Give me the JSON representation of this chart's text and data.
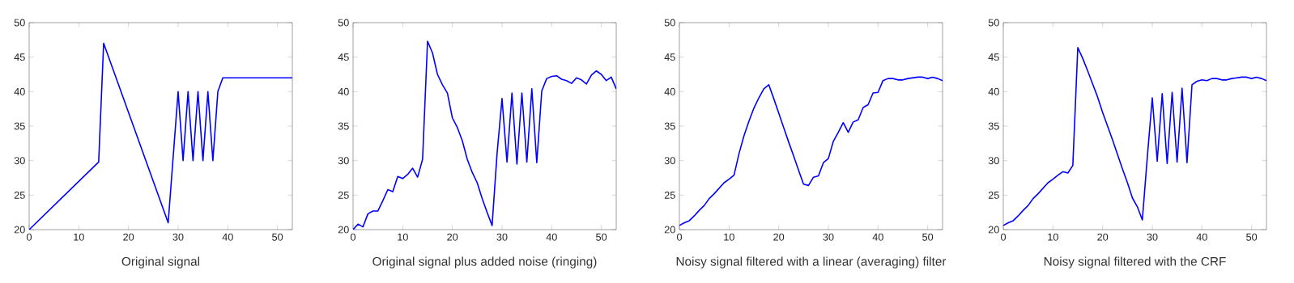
{
  "chart_data": [
    {
      "type": "line",
      "xlabel": "Original signal",
      "xlim": [
        0,
        53
      ],
      "ylim": [
        20,
        50
      ],
      "xticks": [
        0,
        10,
        20,
        30,
        40,
        50
      ],
      "yticks": [
        20,
        25,
        30,
        35,
        40,
        45,
        50
      ],
      "series": [
        {
          "color": "#0000ff",
          "x": [
            0,
            14,
            15,
            28,
            30,
            31,
            32,
            33,
            34,
            35,
            36,
            37,
            38,
            39,
            53
          ],
          "values": [
            20,
            29.8,
            47,
            21,
            40,
            30,
            40,
            30,
            40,
            30,
            40,
            30,
            40,
            42,
            42
          ]
        }
      ]
    },
    {
      "type": "line",
      "xlabel": "Original signal plus added noise (ringing)",
      "xlim": [
        0,
        53
      ],
      "ylim": [
        20,
        50
      ],
      "xticks": [
        0,
        10,
        20,
        30,
        40,
        50
      ],
      "yticks": [
        20,
        25,
        30,
        35,
        40,
        45,
        50
      ],
      "series": [
        {
          "color": "#0000ff",
          "x": [
            0,
            1,
            2,
            3,
            4,
            5,
            6,
            7,
            8,
            9,
            10,
            11,
            12,
            13,
            14,
            15,
            16,
            17,
            18,
            19,
            20,
            21,
            22,
            23,
            24,
            25,
            26,
            27,
            28,
            29,
            30,
            31,
            32,
            33,
            34,
            35,
            36,
            37,
            38,
            39,
            40,
            41,
            42,
            43,
            44,
            45,
            46,
            47,
            48,
            49,
            50,
            51,
            52,
            53
          ],
          "values": [
            20,
            20.8,
            20.4,
            22.3,
            22.7,
            22.7,
            24.2,
            25.8,
            25.5,
            27.7,
            27.4,
            28,
            28.9,
            27.6,
            30.2,
            47.3,
            45.6,
            42.5,
            41,
            39.8,
            36.2,
            34.8,
            32.9,
            30.2,
            28.3,
            26.8,
            24.5,
            22.5,
            20.6,
            31,
            39,
            29.8,
            39.8,
            29.5,
            39.8,
            29.8,
            40.4,
            29.7,
            40.1,
            41.9,
            42.2,
            42.3,
            41.8,
            41.6,
            41.2,
            42,
            41.7,
            41.1,
            42.4,
            43,
            42.5,
            41.6,
            42.1,
            40.4
          ]
        }
      ]
    },
    {
      "type": "line",
      "xlabel": "Noisy signal filtered with a linear (averaging) filter",
      "xlim": [
        0,
        53
      ],
      "ylim": [
        20,
        50
      ],
      "xticks": [
        0,
        10,
        20,
        30,
        40,
        50
      ],
      "yticks": [
        20,
        25,
        30,
        35,
        40,
        45,
        50
      ],
      "series": [
        {
          "color": "#0000ff",
          "x": [
            0,
            1,
            2,
            3,
            4,
            5,
            6,
            7,
            8,
            9,
            10,
            11,
            12,
            13,
            14,
            15,
            16,
            17,
            18,
            19,
            20,
            21,
            22,
            23,
            24,
            25,
            26,
            27,
            28,
            29,
            30,
            31,
            32,
            33,
            34,
            35,
            36,
            37,
            38,
            39,
            40,
            41,
            42,
            43,
            44,
            45,
            46,
            47,
            48,
            49,
            50,
            51,
            52,
            53
          ],
          "values": [
            20.6,
            21,
            21.3,
            22,
            22.8,
            23.5,
            24.5,
            25.2,
            26,
            26.8,
            27.3,
            27.9,
            31,
            33.6,
            35.7,
            37.6,
            39.1,
            40.4,
            41,
            39,
            36.9,
            34.8,
            32.7,
            30.7,
            28.6,
            26.6,
            26.4,
            27.6,
            27.8,
            29.7,
            30.3,
            32.8,
            34.1,
            35.5,
            34.1,
            35.6,
            35.9,
            37.7,
            38.1,
            39.8,
            39.9,
            41.6,
            41.9,
            41.9,
            41.7,
            41.7,
            41.9,
            42,
            42.1,
            42.1,
            41.9,
            42.1,
            41.9,
            41.6
          ]
        }
      ]
    },
    {
      "type": "line",
      "xlabel": "Noisy signal filtered with the CRF",
      "xlim": [
        0,
        53
      ],
      "ylim": [
        20,
        50
      ],
      "xticks": [
        0,
        10,
        20,
        30,
        40,
        50
      ],
      "yticks": [
        20,
        25,
        30,
        35,
        40,
        45,
        50
      ],
      "series": [
        {
          "color": "#0000ff",
          "x": [
            0,
            1,
            2,
            3,
            4,
            5,
            6,
            7,
            8,
            9,
            10,
            11,
            12,
            13,
            14,
            15,
            16,
            17,
            18,
            19,
            20,
            21,
            22,
            23,
            24,
            25,
            26,
            27,
            28,
            29,
            30,
            31,
            32,
            33,
            34,
            35,
            36,
            37,
            38,
            39,
            40,
            41,
            42,
            43,
            44,
            45,
            46,
            47,
            48,
            49,
            50,
            51,
            52,
            53
          ],
          "values": [
            20.6,
            21,
            21.3,
            22,
            22.8,
            23.5,
            24.5,
            25.2,
            26,
            26.8,
            27.3,
            27.9,
            28.4,
            28.2,
            29.3,
            46.4,
            44.8,
            43,
            41.1,
            39.2,
            37,
            35,
            33,
            30.9,
            28.8,
            26.8,
            24.6,
            23.3,
            21.4,
            30.5,
            39.1,
            29.9,
            39.7,
            29.6,
            39.9,
            29.8,
            40.5,
            29.7,
            41,
            41.5,
            41.7,
            41.6,
            41.9,
            41.9,
            41.7,
            41.7,
            41.9,
            42,
            42.1,
            42.1,
            41.9,
            42.1,
            41.9,
            41.6
          ]
        }
      ]
    }
  ]
}
